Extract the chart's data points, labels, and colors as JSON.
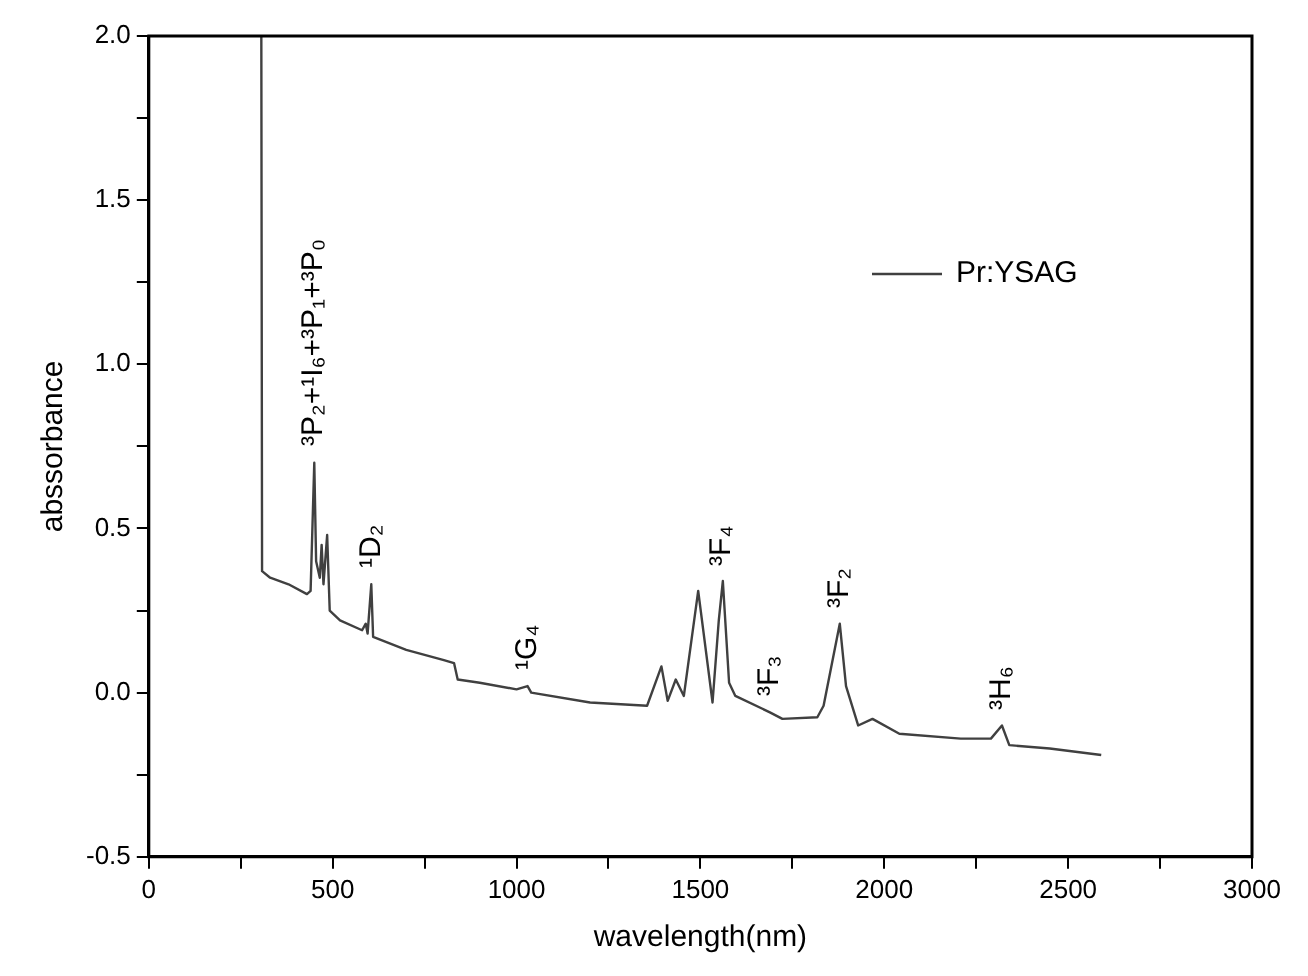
{
  "chart_data": {
    "type": "line",
    "xlabel": "wavelength(nm)",
    "ylabel": "abssorbance",
    "xlim": [
      0,
      3000
    ],
    "ylim": [
      -0.5,
      2.0
    ],
    "xticks": [
      0,
      {
        "value": 250,
        "label": null
      },
      500,
      {
        "value": 750,
        "label": null
      },
      1000,
      {
        "value": 1250,
        "label": null
      },
      1500,
      {
        "value": 1750,
        "label": null
      },
      2000,
      {
        "value": 2250,
        "label": null
      },
      2500,
      {
        "value": 2750,
        "label": null
      },
      3000
    ],
    "yticks": [
      {
        "value": -0.5,
        "label": "-0.5"
      },
      {
        "value": -0.25,
        "label": null
      },
      {
        "value": 0,
        "label": "0.0"
      },
      {
        "value": 0.25,
        "label": null
      },
      {
        "value": 0.5,
        "label": "0.5"
      },
      {
        "value": 0.75,
        "label": null
      },
      {
        "value": 1.0,
        "label": "1.0"
      },
      {
        "value": 1.25,
        "label": null
      },
      {
        "value": 1.5,
        "label": "1.5"
      },
      {
        "value": 1.75,
        "label": null
      },
      {
        "value": 2.0,
        "label": "2.0"
      }
    ],
    "grid": false,
    "legend": "top right",
    "marker": "none",
    "line_style": "solid",
    "series": [
      {
        "name": "Pr:YSAG",
        "color": "#404040",
        "x": [
          306,
          308,
          330,
          380,
          430,
          440,
          450,
          455,
          465,
          470,
          475,
          485,
          492,
          520,
          580,
          590,
          595,
          605,
          610,
          700,
          800,
          830,
          840,
          900,
          1000,
          1030,
          1040,
          1200,
          1355,
          1394,
          1411,
          1433,
          1455,
          1494,
          1533,
          1550,
          1561,
          1578,
          1595,
          1689,
          1723,
          1818,
          1835,
          1879,
          1896,
          1929,
          1968,
          2041,
          2208,
          2290,
          2320,
          2340,
          2450,
          2590
        ],
        "values": [
          2.0,
          0.37,
          0.35,
          0.33,
          0.3,
          0.31,
          0.7,
          0.4,
          0.35,
          0.45,
          0.33,
          0.48,
          0.25,
          0.22,
          0.19,
          0.21,
          0.18,
          0.33,
          0.17,
          0.13,
          0.1,
          0.09,
          0.04,
          0.03,
          0.01,
          0.02,
          0.0,
          -0.03,
          -0.04,
          0.08,
          -0.025,
          0.04,
          -0.01,
          0.31,
          -0.03,
          0.22,
          0.34,
          0.03,
          -0.01,
          -0.06,
          -0.08,
          -0.075,
          -0.04,
          0.21,
          0.02,
          -0.1,
          -0.08,
          -0.125,
          -0.14,
          -0.14,
          -0.1,
          -0.16,
          -0.17,
          -0.19
        ]
      }
    ],
    "annotations": [
      {
        "text": "³P₂+¹I₆+³P₁+³P₀",
        "x": 450,
        "y": 0.7
      },
      {
        "text": "¹D₂",
        "x": 605,
        "y": 0.33
      },
      {
        "text": "¹G₄",
        "x": 1030,
        "y": 0.02
      },
      {
        "text": "³F₄",
        "x": 1561,
        "y": 0.34
      },
      {
        "text": "³F₃",
        "x": 1689,
        "y": -0.06
      },
      {
        "text": "³F₂",
        "x": 1879,
        "y": 0.21
      },
      {
        "text": "³H₆",
        "x": 2320,
        "y": -0.1
      }
    ]
  }
}
